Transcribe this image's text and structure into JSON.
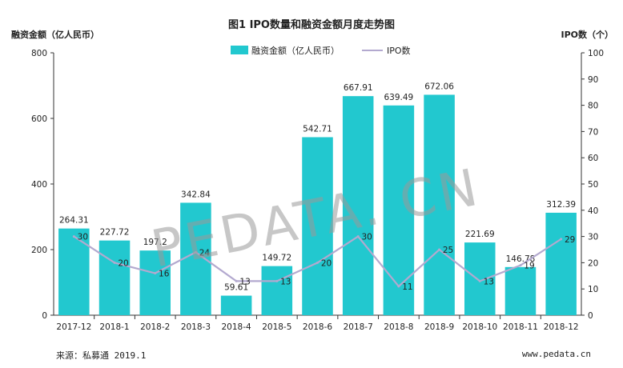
{
  "watermark": "PEDATA. CN",
  "chart_data": {
    "type": "bar+line",
    "title": "图1 IPO数量和融资金额月度走势图",
    "categories": [
      "2017-12",
      "2018-1",
      "2018-2",
      "2018-3",
      "2018-4",
      "2018-5",
      "2018-6",
      "2018-7",
      "2018-8",
      "2018-9",
      "2018-10",
      "2018-11",
      "2018-12"
    ],
    "series": [
      {
        "name": "融资金额（亿人民币）",
        "kind": "bar",
        "axis": "left",
        "color": "#22c8cf",
        "values": [
          264.31,
          227.72,
          197.2,
          342.84,
          59.61,
          149.72,
          542.71,
          667.91,
          639.49,
          672.06,
          221.69,
          146.78,
          312.39
        ],
        "labels": [
          "264.31",
          "227.72",
          "197.2",
          "342.84",
          "59.61",
          "149.72",
          "542.71",
          "667.91",
          "639.49",
          "672.06",
          "221.69",
          "146.78",
          "312.39"
        ]
      },
      {
        "name": "IPO数",
        "kind": "line",
        "axis": "right",
        "color": "#b3a9cf",
        "values": [
          30,
          20,
          16,
          24,
          13,
          13,
          20,
          30,
          11,
          25,
          13,
          19,
          29
        ],
        "labels": [
          "30",
          "20",
          "16",
          "24",
          "13",
          "13",
          "20",
          "30",
          "11",
          "25",
          "13",
          "19",
          "29"
        ]
      }
    ],
    "ylabel_left": "融资金额（亿人民币）",
    "ylabel_right": "IPO数（个）",
    "ylim_left": [
      0,
      800
    ],
    "ylim_right": [
      0,
      100
    ],
    "yticks_left": [
      "0",
      "200",
      "400",
      "600",
      "800"
    ],
    "yticks_right": [
      "0",
      "10",
      "20",
      "30",
      "40",
      "50",
      "60",
      "70",
      "80",
      "90",
      "100"
    ],
    "legend_position": "top-center",
    "grid": false
  },
  "footer": {
    "source": "来源：私募通 2019.1",
    "site": "www.pedata.cn"
  }
}
